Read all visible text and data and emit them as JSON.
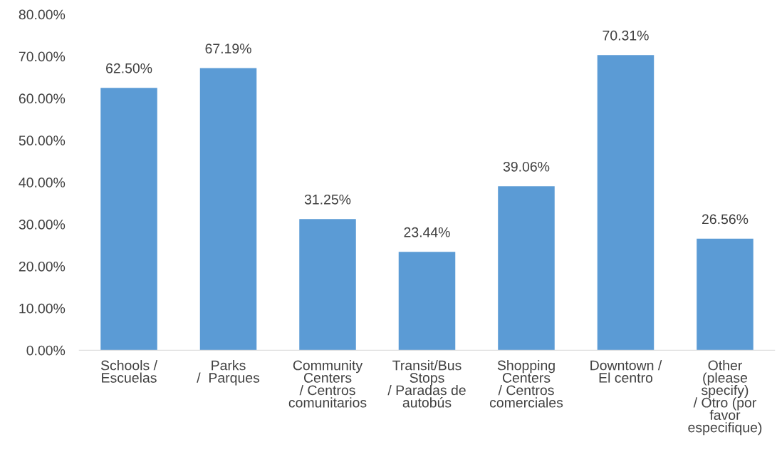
{
  "chart_data": {
    "type": "bar",
    "categories": [
      "Schools /\nEscuelas",
      "Parks\n/  Parques",
      "Community\nCenters\n/ Centros\ncomunitarios",
      "Transit/Bus\nStops\n/ Paradas de\nautobús",
      "Shopping\nCenters\n/ Centros\ncomerciales",
      "Downtown /\nEl centro",
      "Other\n(please\nspecify)\n/ Otro (por\nfavor\nespecifique)"
    ],
    "values": [
      62.5,
      67.19,
      31.25,
      23.44,
      39.06,
      70.31,
      26.56
    ],
    "value_labels": [
      "62.50%",
      "67.19%",
      "31.25%",
      "23.44%",
      "39.06%",
      "70.31%",
      "26.56%"
    ],
    "color": "#5b9bd5",
    "ylim": [
      0,
      80
    ],
    "yticks": [
      {
        "value": 0,
        "label": "0.00%"
      },
      {
        "value": 10,
        "label": "10.00%"
      },
      {
        "value": 20,
        "label": "20.00%"
      },
      {
        "value": 30,
        "label": "30.00%"
      },
      {
        "value": 40,
        "label": "40.00%"
      },
      {
        "value": 50,
        "label": "50.00%"
      },
      {
        "value": 60,
        "label": "60.00%"
      },
      {
        "value": 70,
        "label": "70.00%"
      },
      {
        "value": 80,
        "label": "80.00%"
      }
    ],
    "grid": false
  }
}
